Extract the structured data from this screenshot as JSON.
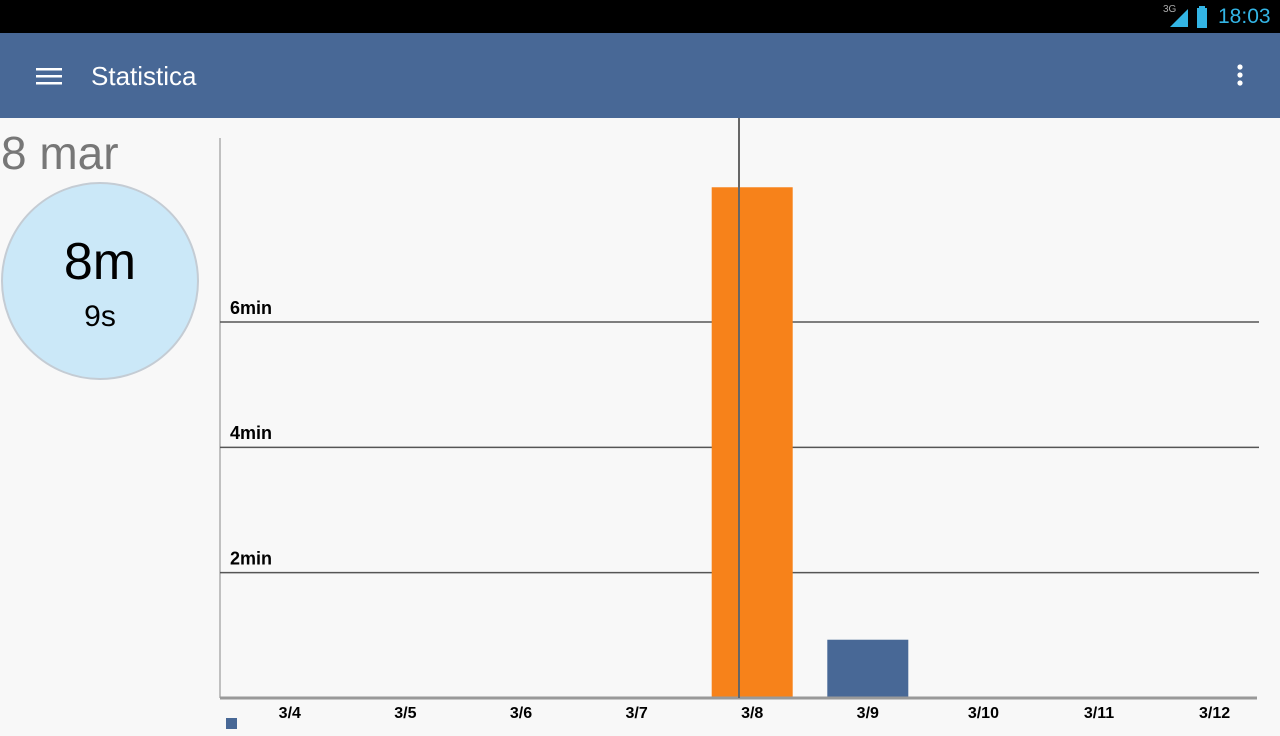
{
  "status_bar": {
    "network": "3G",
    "time": "18:03"
  },
  "app_bar": {
    "title": "Statistica"
  },
  "summary": {
    "date": "8 mar",
    "minutes": "8m",
    "seconds": "9s"
  },
  "chart_data": {
    "type": "bar",
    "categories": [
      "3/4",
      "3/5",
      "3/6",
      "3/7",
      "3/8",
      "3/9",
      "3/10",
      "3/11",
      "3/12"
    ],
    "values": [
      0,
      0,
      0,
      0,
      8.15,
      0.93,
      0,
      0,
      0
    ],
    "colors": [
      "#486896",
      "#486896",
      "#486896",
      "#486896",
      "#f7821a",
      "#486896",
      "#486896",
      "#486896",
      "#486896"
    ],
    "ylim": [
      0,
      9
    ],
    "yticks": [
      {
        "value": 2,
        "label": "2min"
      },
      {
        "value": 4,
        "label": "4min"
      },
      {
        "value": 6,
        "label": "6min"
      }
    ],
    "grid": true
  }
}
